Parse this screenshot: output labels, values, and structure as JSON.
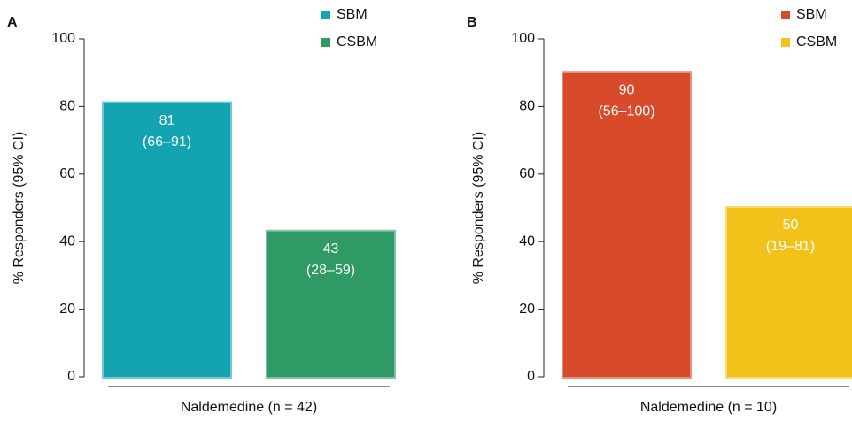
{
  "chart_data": [
    {
      "type": "bar",
      "panel": "A",
      "ylabel": "% Responders (95% CI)",
      "categories": [
        "Naldemedine (n = 42)"
      ],
      "series": [
        {
          "name": "SBM",
          "color": "#14a3b0",
          "values": [
            81
          ],
          "ci_labels": [
            "(66–91)"
          ]
        },
        {
          "name": "CSBM",
          "color": "#2e9a64",
          "values": [
            43
          ],
          "ci_labels": [
            "(28–59)"
          ]
        }
      ],
      "ylim": [
        0,
        100
      ],
      "yticks": [
        0,
        20,
        40,
        60,
        80,
        100
      ]
    },
    {
      "type": "bar",
      "panel": "B",
      "ylabel": "% Responders (95% CI)",
      "categories": [
        "Naldemedine (n = 10)"
      ],
      "series": [
        {
          "name": "SBM",
          "color": "#d74a2a",
          "values": [
            90
          ],
          "ci_labels": [
            "(56–100)"
          ]
        },
        {
          "name": "CSBM",
          "color": "#f2c21b",
          "values": [
            50
          ],
          "ci_labels": [
            "(19–81)"
          ]
        }
      ],
      "ylim": [
        0,
        100
      ],
      "yticks": [
        0,
        20,
        40,
        60,
        80,
        100
      ]
    }
  ]
}
